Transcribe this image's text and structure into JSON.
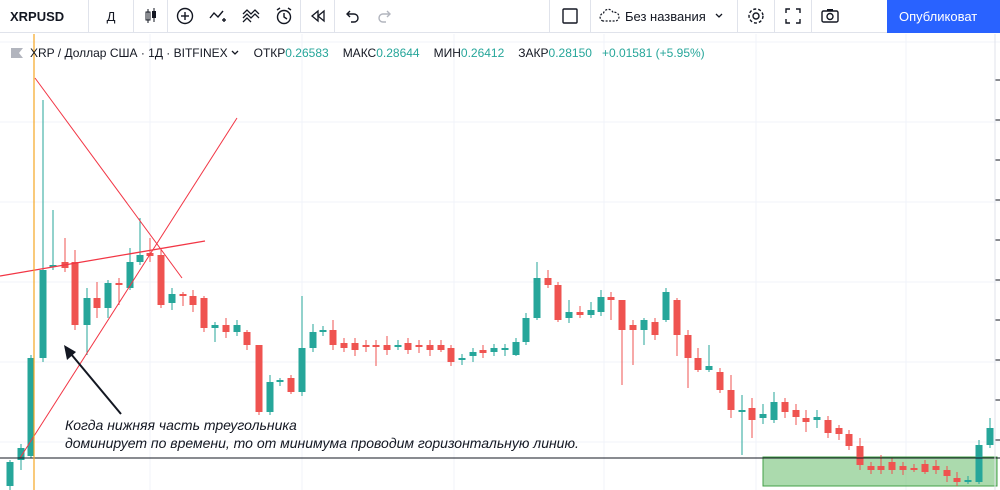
{
  "toolbar": {
    "symbol": "XRPUSD",
    "interval": "Д",
    "layout_name": "Без названия",
    "publish_label": "Опубликоват",
    "icons": [
      "candles-icon",
      "add-indicator-icon",
      "indicators-icon",
      "templates-icon",
      "alert-icon",
      "replay-icon",
      "undo-icon",
      "redo-icon",
      "layout-icon",
      "cloud-icon",
      "gear-icon",
      "fullscreen-icon",
      "camera-icon"
    ]
  },
  "legend": {
    "title": "XRP / Доллар США · 1Д · BITFINEX",
    "open_label": "ОТКР",
    "open_value": "0.26583",
    "high_label": "МАКС",
    "high_value": "0.28644",
    "low_label": "МИН",
    "low_value": "0.26412",
    "close_label": "ЗАКР",
    "close_value": "0.28150",
    "change": "+0.01581 (+5.95%)"
  },
  "annotation": {
    "line1": "Когда нижняя часть треугольника",
    "line2": "доминирует по времени, то от минимума проводим горизонтальную линию."
  },
  "colors": {
    "up": "#26a69a",
    "down": "#ef5350",
    "accent": "#2962ff",
    "trend": "#f23645",
    "box": "#66bb6a"
  }
}
